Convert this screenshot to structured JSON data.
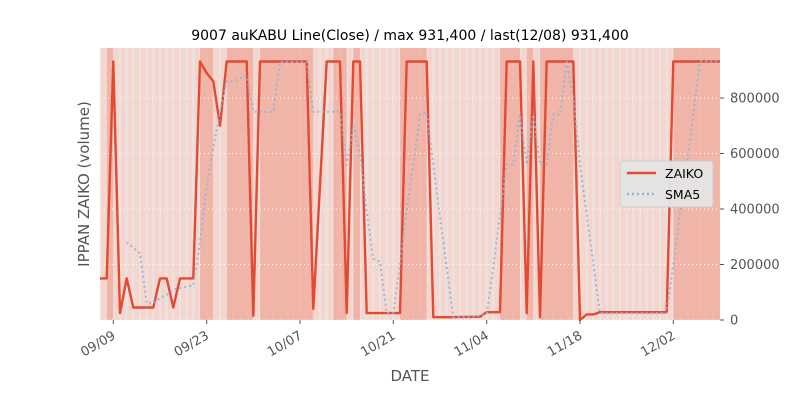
{
  "chart_data": {
    "type": "line",
    "title": "9007 auKABU Line(Close) / max 931,400 / last(12/08) 931,400",
    "xlabel": "DATE",
    "ylabel": "IPPAN ZAIKO (volume)",
    "ylim": [
      0,
      980000
    ],
    "xlim": [
      "2019-09-07",
      "2019-12-09"
    ],
    "grid": true,
    "legend_position": "center-right",
    "x_ticks": [
      {
        "date": "2019-09-09",
        "label": "09/09"
      },
      {
        "date": "2019-09-23",
        "label": "09/23"
      },
      {
        "date": "2019-10-07",
        "label": "10/07"
      },
      {
        "date": "2019-10-21",
        "label": "10/21"
      },
      {
        "date": "2019-11-04",
        "label": "11/04"
      },
      {
        "date": "2019-11-18",
        "label": "11/18"
      },
      {
        "date": "2019-12-02",
        "label": "12/02"
      }
    ],
    "y_ticks": [
      {
        "value": 0,
        "label": "0"
      },
      {
        "value": 200000,
        "label": "200000"
      },
      {
        "value": 400000,
        "label": "400000"
      },
      {
        "value": 600000,
        "label": "600000"
      },
      {
        "value": 800000,
        "label": "800000"
      }
    ],
    "high_periods": [
      [
        "2019-09-08",
        "2019-09-09"
      ],
      [
        "2019-09-22",
        "2019-09-24"
      ],
      [
        "2019-09-26",
        "2019-09-30"
      ],
      [
        "2019-10-01",
        "2019-10-09"
      ],
      [
        "2019-10-12",
        "2019-10-14"
      ],
      [
        "2019-10-15",
        "2019-10-16"
      ],
      [
        "2019-10-22",
        "2019-10-26"
      ],
      [
        "2019-11-06",
        "2019-11-09"
      ],
      [
        "2019-11-10",
        "2019-11-11"
      ],
      [
        "2019-11-12",
        "2019-11-17"
      ],
      [
        "2019-12-02",
        "2019-12-09"
      ]
    ],
    "series": [
      {
        "name": "ZAIKO",
        "color": "#e24a33",
        "style": "solid",
        "points": [
          [
            "2019-09-07",
            150000
          ],
          [
            "2019-09-08",
            150000
          ],
          [
            "2019-09-09",
            931400
          ],
          [
            "2019-09-10",
            25000
          ],
          [
            "2019-09-11",
            150000
          ],
          [
            "2019-09-12",
            45000
          ],
          [
            "2019-09-15",
            45000
          ],
          [
            "2019-09-16",
            150000
          ],
          [
            "2019-09-17",
            150000
          ],
          [
            "2019-09-18",
            45000
          ],
          [
            "2019-09-19",
            150000
          ],
          [
            "2019-09-21",
            150000
          ],
          [
            "2019-09-22",
            931400
          ],
          [
            "2019-09-23",
            890000
          ],
          [
            "2019-09-24",
            860000
          ],
          [
            "2019-09-25",
            700000
          ],
          [
            "2019-09-26",
            931400
          ],
          [
            "2019-09-29",
            931400
          ],
          [
            "2019-09-30",
            15000
          ],
          [
            "2019-10-01",
            931400
          ],
          [
            "2019-10-08",
            931400
          ],
          [
            "2019-10-09",
            40000
          ],
          [
            "2019-10-11",
            931400
          ],
          [
            "2019-10-13",
            931400
          ],
          [
            "2019-10-14",
            25000
          ],
          [
            "2019-10-15",
            931400
          ],
          [
            "2019-10-16",
            931400
          ],
          [
            "2019-10-17",
            25000
          ],
          [
            "2019-10-22",
            25000
          ],
          [
            "2019-10-23",
            931400
          ],
          [
            "2019-10-26",
            931400
          ],
          [
            "2019-10-27",
            10000
          ],
          [
            "2019-10-29",
            10000
          ],
          [
            "2019-11-03",
            12000
          ],
          [
            "2019-11-04",
            28000
          ],
          [
            "2019-11-06",
            28000
          ],
          [
            "2019-11-07",
            931400
          ],
          [
            "2019-11-09",
            931400
          ],
          [
            "2019-11-10",
            25000
          ],
          [
            "2019-11-11",
            931400
          ],
          [
            "2019-11-12",
            10000
          ],
          [
            "2019-11-13",
            931400
          ],
          [
            "2019-11-17",
            931400
          ],
          [
            "2019-11-18",
            0
          ],
          [
            "2019-11-19",
            20000
          ],
          [
            "2019-11-20",
            20000
          ],
          [
            "2019-11-21",
            28000
          ],
          [
            "2019-11-22",
            28000
          ],
          [
            "2019-12-01",
            28000
          ],
          [
            "2019-12-02",
            931400
          ],
          [
            "2019-12-09",
            931400
          ]
        ]
      },
      {
        "name": "SMA5",
        "color": "#8eb5d6",
        "style": "dotted",
        "points": [
          [
            "2019-09-11",
            280000
          ],
          [
            "2019-09-12",
            260000
          ],
          [
            "2019-09-13",
            240000
          ],
          [
            "2019-09-14",
            60000
          ],
          [
            "2019-09-15",
            60000
          ],
          [
            "2019-09-16",
            80000
          ],
          [
            "2019-09-17",
            90000
          ],
          [
            "2019-09-18",
            110000
          ],
          [
            "2019-09-20",
            120000
          ],
          [
            "2019-09-21",
            125000
          ],
          [
            "2019-09-22",
            280000
          ],
          [
            "2019-09-23",
            480000
          ],
          [
            "2019-09-24",
            620000
          ],
          [
            "2019-09-25",
            750000
          ],
          [
            "2019-09-26",
            860000
          ],
          [
            "2019-09-27",
            860000
          ],
          [
            "2019-09-28",
            870000
          ],
          [
            "2019-09-29",
            880000
          ],
          [
            "2019-09-30",
            750000
          ],
          [
            "2019-10-03",
            750000
          ],
          [
            "2019-10-04",
            930000
          ],
          [
            "2019-10-08",
            930000
          ],
          [
            "2019-10-09",
            750000
          ],
          [
            "2019-10-13",
            750000
          ],
          [
            "2019-10-14",
            560000
          ],
          [
            "2019-10-15",
            700000
          ],
          [
            "2019-10-16",
            600000
          ],
          [
            "2019-10-17",
            390000
          ],
          [
            "2019-10-18",
            220000
          ],
          [
            "2019-10-19",
            210000
          ],
          [
            "2019-10-20",
            25000
          ],
          [
            "2019-10-21",
            25000
          ],
          [
            "2019-10-22",
            200000
          ],
          [
            "2019-10-23",
            400000
          ],
          [
            "2019-10-24",
            560000
          ],
          [
            "2019-10-25",
            740000
          ],
          [
            "2019-10-26",
            750000
          ],
          [
            "2019-10-27",
            560000
          ],
          [
            "2019-10-28",
            370000
          ],
          [
            "2019-10-29",
            190000
          ],
          [
            "2019-10-30",
            10000
          ],
          [
            "2019-11-02",
            12000
          ],
          [
            "2019-11-04",
            20000
          ],
          [
            "2019-11-05",
            190000
          ],
          [
            "2019-11-06",
            380000
          ],
          [
            "2019-11-07",
            560000
          ],
          [
            "2019-11-08",
            560000
          ],
          [
            "2019-11-09",
            740000
          ],
          [
            "2019-11-10",
            560000
          ],
          [
            "2019-11-11",
            740000
          ],
          [
            "2019-11-12",
            560000
          ],
          [
            "2019-11-13",
            560000
          ],
          [
            "2019-11-14",
            740000
          ],
          [
            "2019-11-15",
            740000
          ],
          [
            "2019-11-16",
            930000
          ],
          [
            "2019-11-17",
            800000
          ],
          [
            "2019-11-18",
            560000
          ],
          [
            "2019-11-19",
            380000
          ],
          [
            "2019-11-20",
            200000
          ],
          [
            "2019-11-21",
            25000
          ],
          [
            "2019-12-01",
            25000
          ],
          [
            "2019-12-02",
            200000
          ],
          [
            "2019-12-03",
            380000
          ],
          [
            "2019-12-04",
            560000
          ],
          [
            "2019-12-05",
            740000
          ],
          [
            "2019-12-06",
            931400
          ],
          [
            "2019-12-09",
            931400
          ]
        ]
      }
    ]
  }
}
